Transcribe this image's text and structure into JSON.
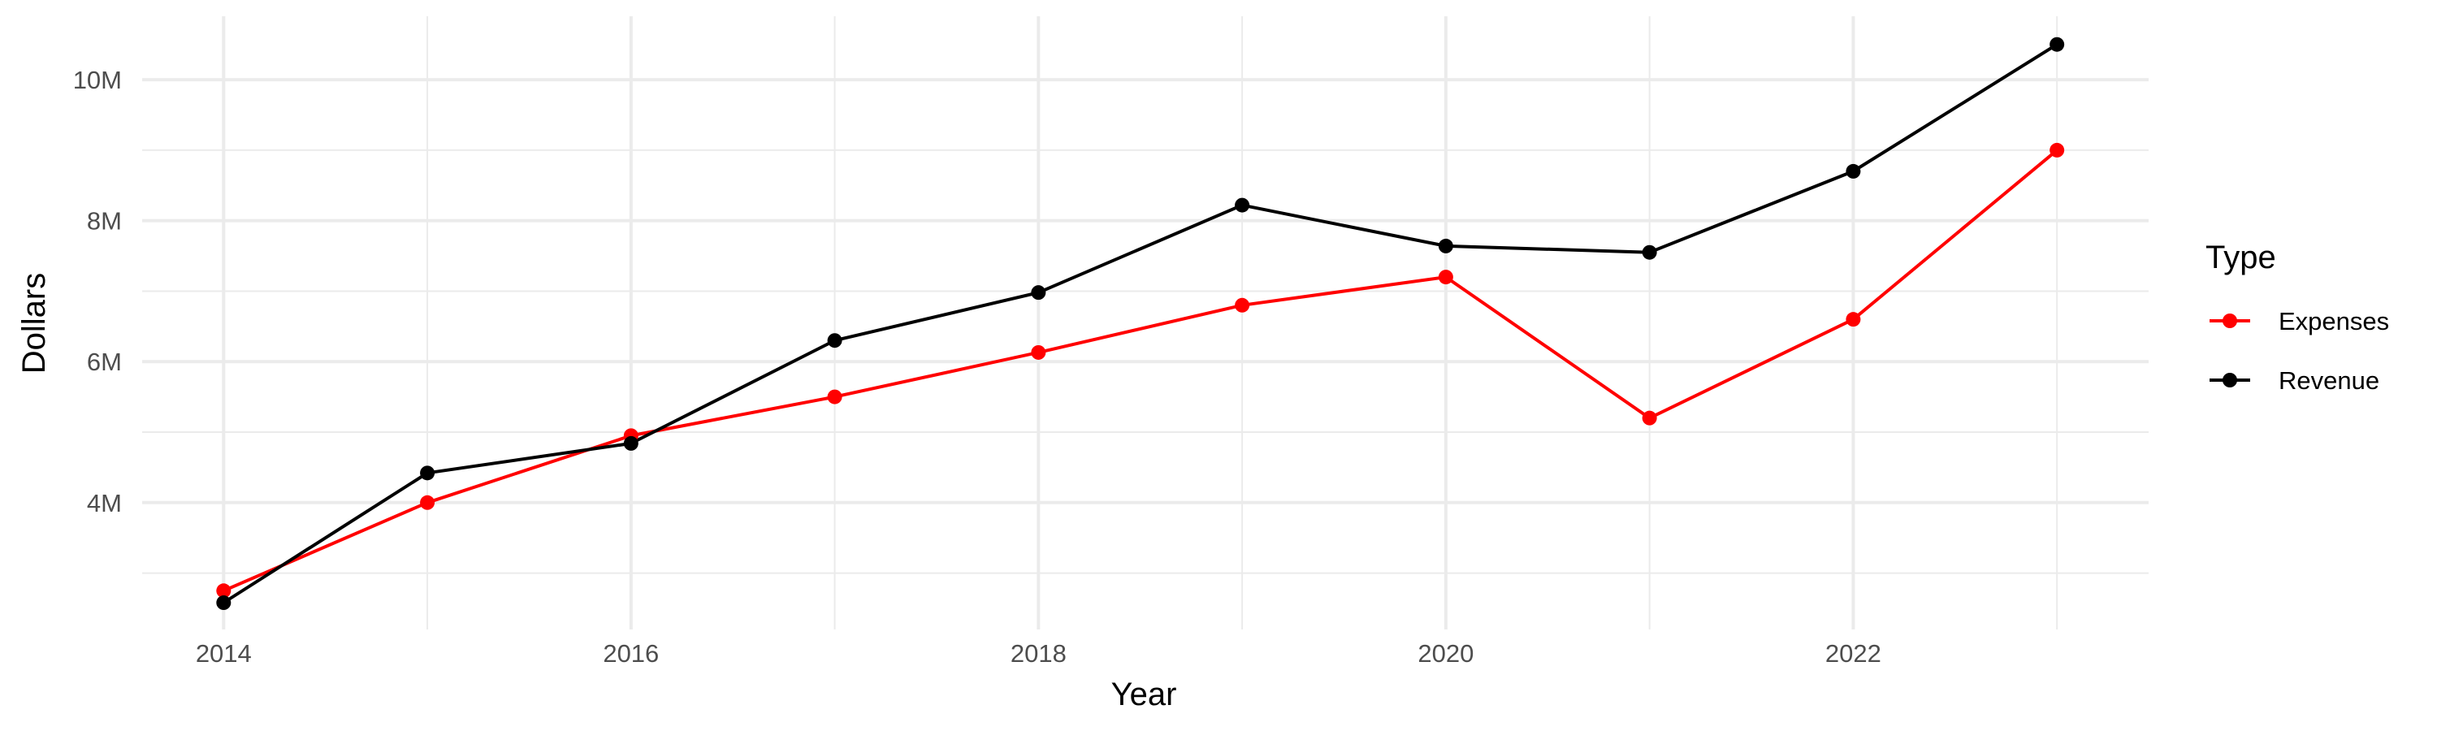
{
  "chart_data": {
    "type": "line",
    "title": "",
    "xlabel": "Year",
    "ylabel": "Dollars",
    "x": [
      2014,
      2015,
      2016,
      2017,
      2018,
      2019,
      2020,
      2021,
      2022,
      2023
    ],
    "x_ticks": [
      2014,
      2016,
      2018,
      2020,
      2022
    ],
    "x_tick_labels": [
      "2014",
      "2016",
      "2018",
      "2020",
      "2022"
    ],
    "y_ticks": [
      4000000,
      6000000,
      8000000,
      10000000
    ],
    "y_tick_labels": [
      "4M",
      "6M",
      "8M",
      "10M"
    ],
    "xlim": [
      2013.6,
      2023.45
    ],
    "ylim": [
      2200000,
      10900000
    ],
    "grid": true,
    "legend": {
      "title": "Type",
      "position": "right",
      "entries": [
        "Expenses",
        "Revenue"
      ]
    },
    "series": [
      {
        "name": "Expenses",
        "color": "#ff0000",
        "values": [
          2750000,
          4000000,
          4950000,
          5500000,
          6130000,
          6800000,
          7200000,
          5200000,
          6600000,
          9000000
        ]
      },
      {
        "name": "Revenue",
        "color": "#000000",
        "values": [
          2580000,
          4420000,
          4840000,
          6300000,
          6980000,
          8220000,
          7640000,
          7550000,
          8700000,
          10500000
        ]
      }
    ]
  }
}
